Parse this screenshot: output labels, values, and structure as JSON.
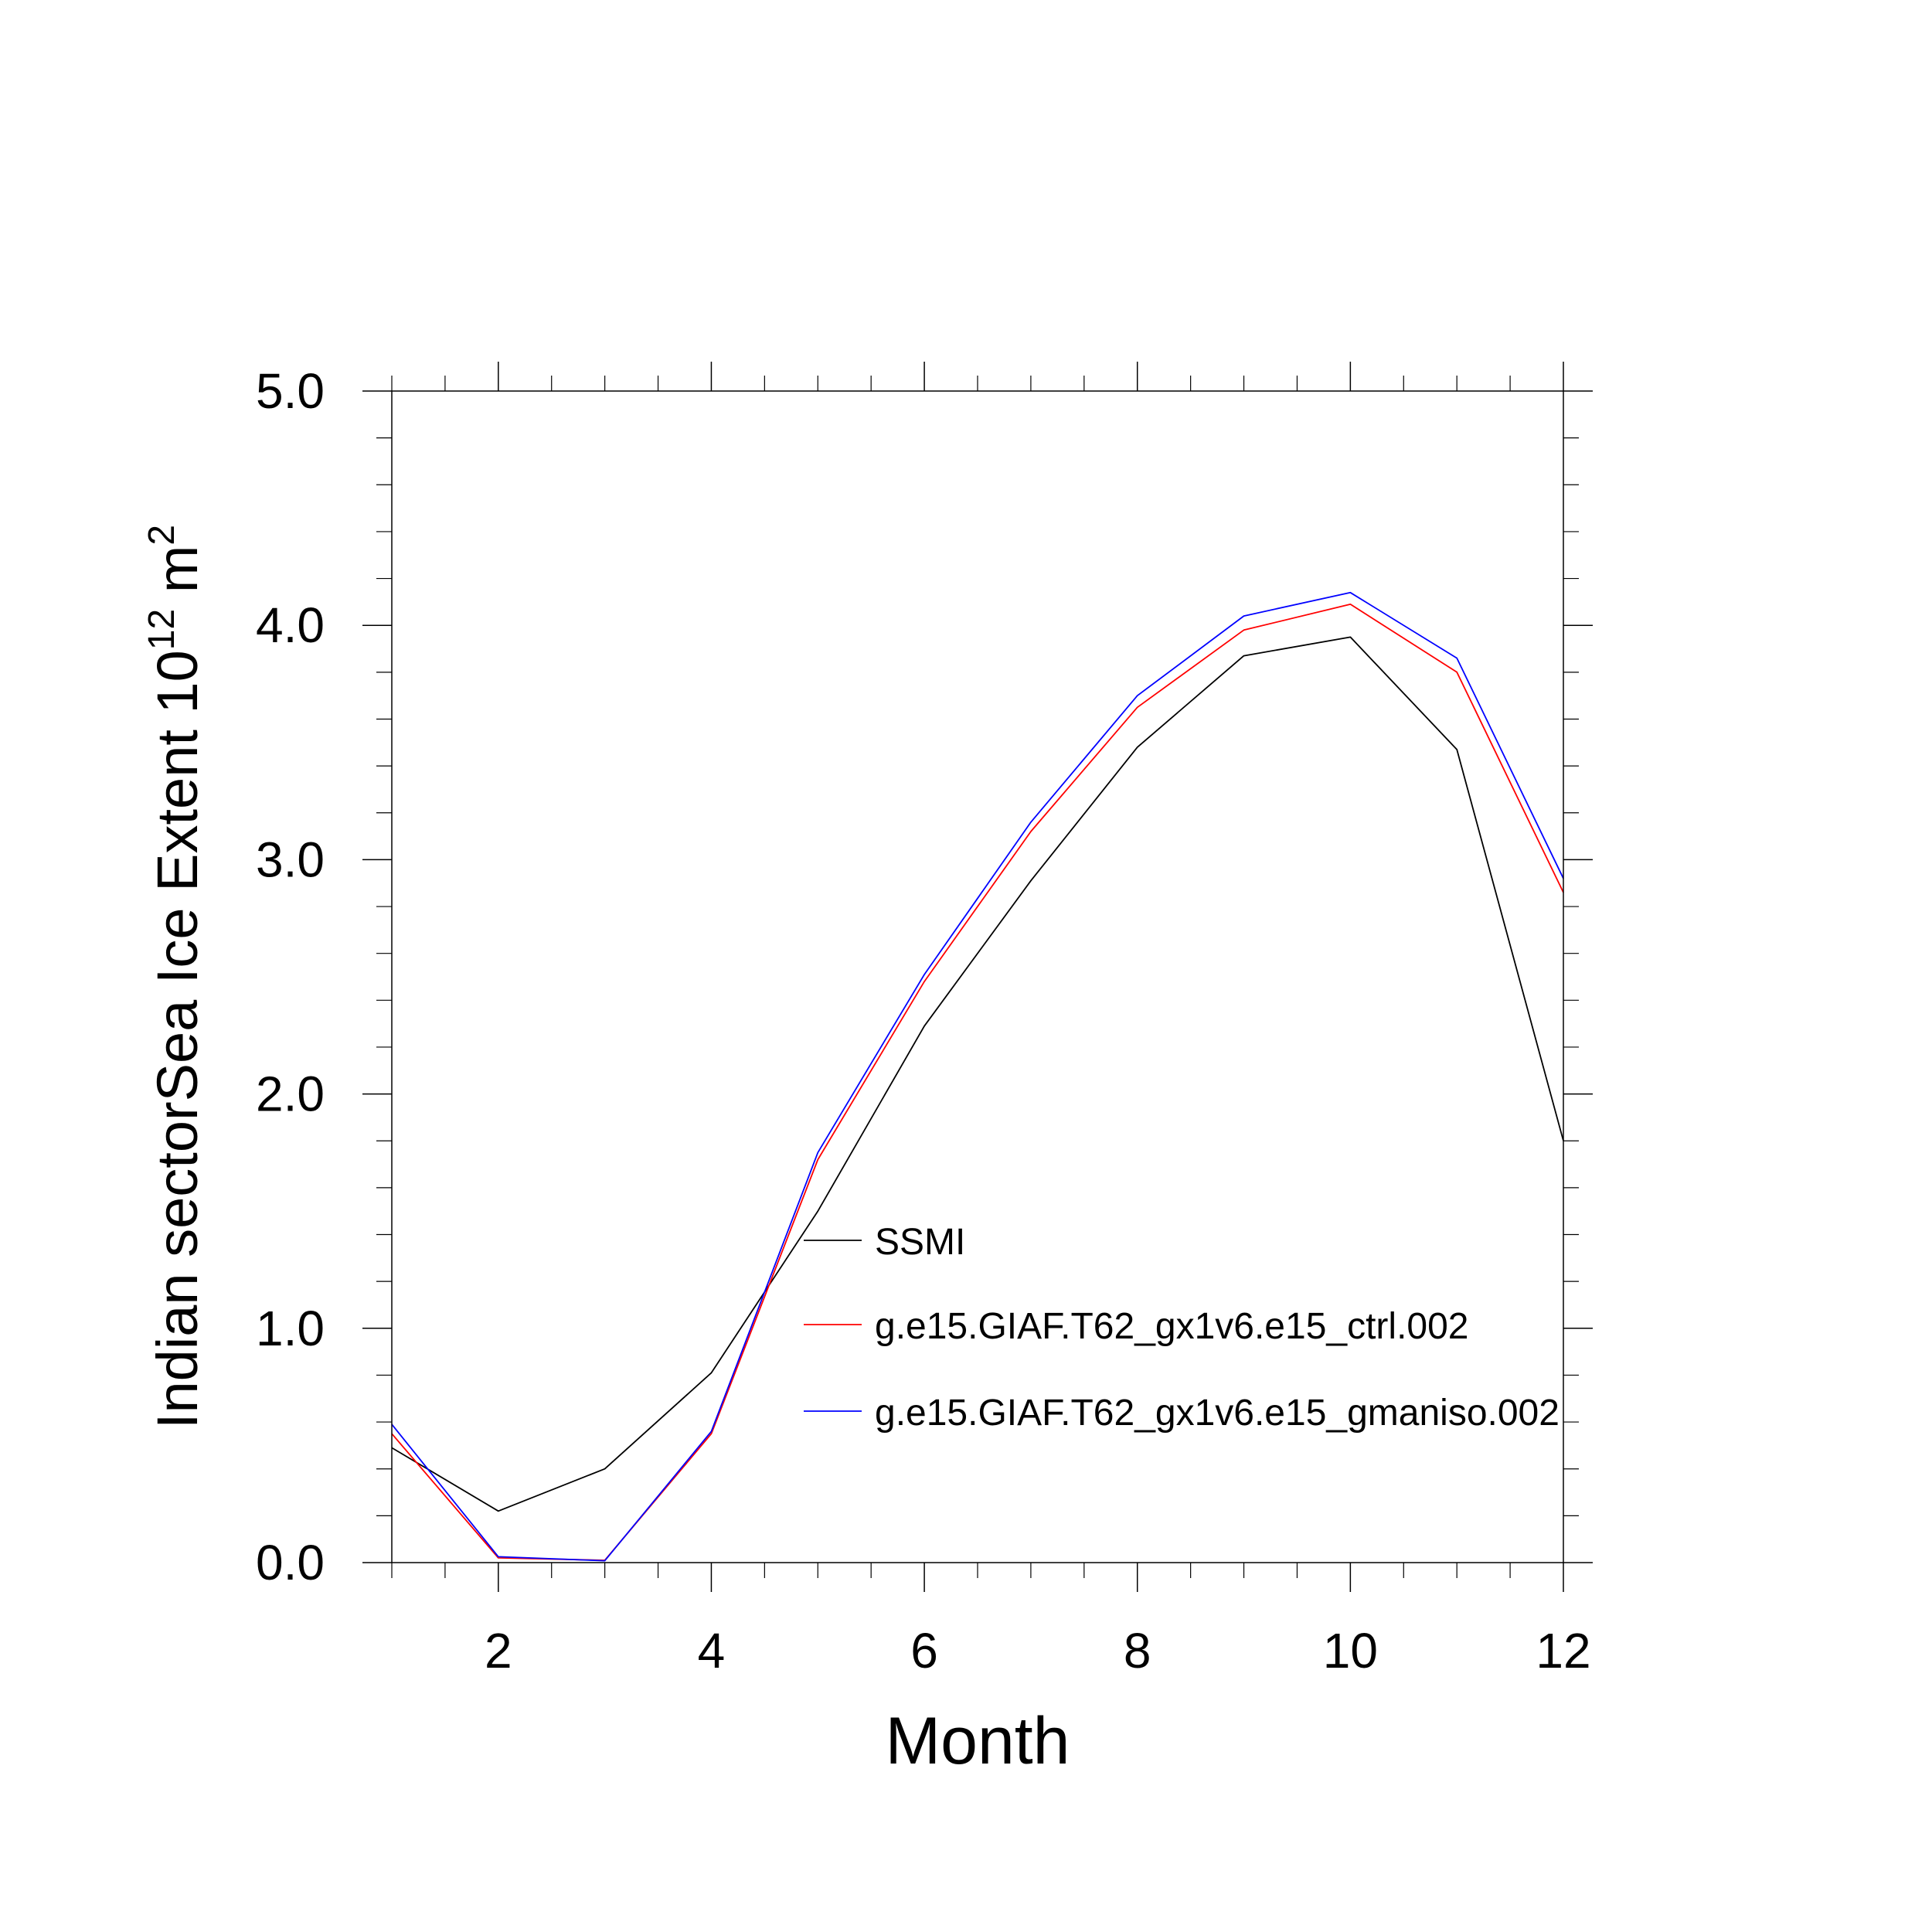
{
  "chart_data": {
    "type": "line",
    "title": "",
    "xlabel": "Month",
    "ylabel": {
      "main": "Indian sectorSea Ice Extent 10",
      "superscript": "12",
      "unit": "m",
      "unit_superscript": "2"
    },
    "xlim": [
      1,
      12
    ],
    "ylim": [
      0.0,
      5.0
    ],
    "x_ticks": [
      2,
      4,
      6,
      8,
      10,
      12
    ],
    "x_tick_labels": [
      "2",
      "4",
      "6",
      "8",
      "10",
      "12"
    ],
    "y_ticks": [
      0.0,
      1.0,
      2.0,
      3.0,
      4.0,
      5.0
    ],
    "y_tick_labels": [
      "0.0",
      "1.0",
      "2.0",
      "3.0",
      "4.0",
      "5.0"
    ],
    "grid": false,
    "legend_position": "center-right",
    "x": [
      1,
      2,
      3,
      4,
      5,
      6,
      7,
      8,
      9,
      10,
      11,
      12
    ],
    "series": [
      {
        "name": "SSMI",
        "color": "#000000",
        "values": [
          0.49,
          0.22,
          0.4,
          0.81,
          1.5,
          2.29,
          2.91,
          3.48,
          3.87,
          3.95,
          3.47,
          1.8
        ]
      },
      {
        "name": "g.e15.GIAF.T62_gx1v6.e15_ctrl.002",
        "color": "#ff0000",
        "values": [
          0.55,
          0.02,
          0.01,
          0.55,
          1.72,
          2.48,
          3.12,
          3.65,
          3.98,
          4.09,
          3.8,
          2.86
        ]
      },
      {
        "name": "g.e15.GIAF.T62_gx1v6.e15_gmaniso.002",
        "color": "#0000ff",
        "values": [
          0.59,
          0.025,
          0.008,
          0.56,
          1.75,
          2.51,
          3.16,
          3.7,
          4.04,
          4.14,
          3.86,
          2.92
        ]
      }
    ]
  }
}
